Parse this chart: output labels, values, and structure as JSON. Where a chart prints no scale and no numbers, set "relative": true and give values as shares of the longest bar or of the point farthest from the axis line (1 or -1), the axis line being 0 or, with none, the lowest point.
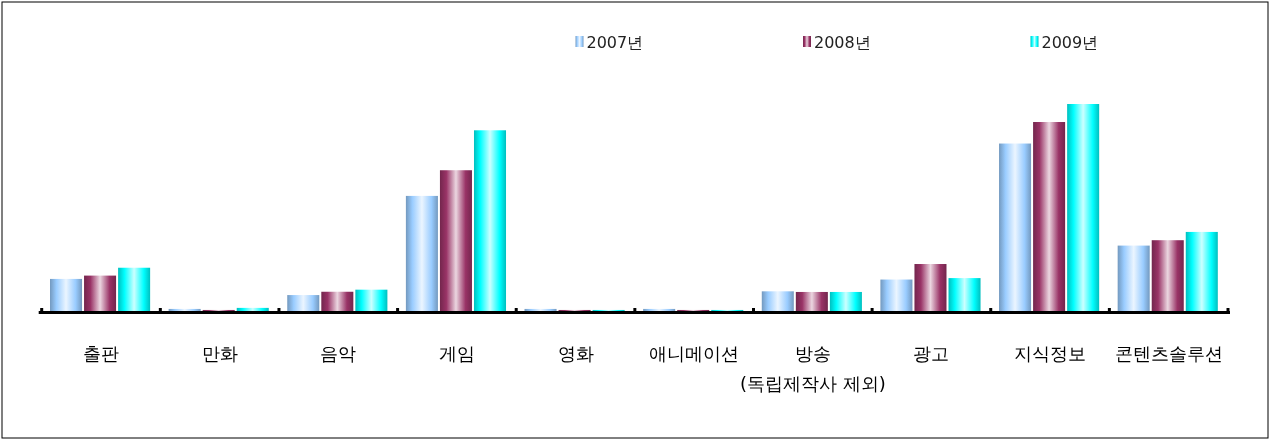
{
  "chart_data": {
    "type": "bar",
    "relative": true,
    "categories": [
      "출판",
      "만화",
      "음악",
      "게임",
      "영화",
      "애니메이션",
      "방송\n(독립제작사 제외)",
      "광고",
      "지식정보",
      "콘텐츠솔루션"
    ],
    "series": [
      {
        "name": "2007년",
        "color": "#99ccff",
        "values": [
          0.155,
          0.01,
          0.077,
          0.556,
          0.01,
          0.01,
          0.095,
          0.152,
          0.809,
          0.316
        ]
      },
      {
        "name": "2008년",
        "color": "#993366",
        "values": [
          0.171,
          0.005,
          0.093,
          0.68,
          0.005,
          0.005,
          0.092,
          0.227,
          0.913,
          0.342
        ]
      },
      {
        "name": "2009년",
        "color": "#00ffff",
        "values": [
          0.209,
          0.015,
          0.103,
          0.873,
          0.005,
          0.005,
          0.092,
          0.159,
          1,
          0.382
        ]
      }
    ],
    "legend": "top right"
  }
}
